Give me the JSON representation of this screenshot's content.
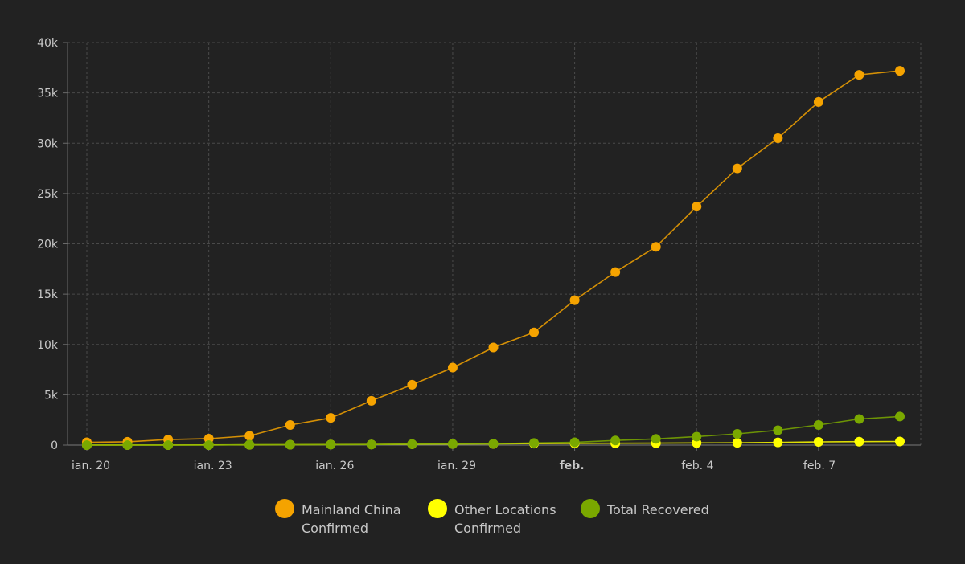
{
  "chart_data": {
    "type": "line",
    "x": [
      "ian. 20",
      "ian. 21",
      "ian. 22",
      "ian. 23",
      "ian. 24",
      "ian. 25",
      "ian. 26",
      "ian. 27",
      "ian. 28",
      "ian. 29",
      "ian. 30",
      "ian. 31",
      "feb. 1",
      "feb. 2",
      "feb. 3",
      "feb. 4",
      "feb. 5",
      "feb. 6",
      "feb. 7",
      "feb. 8",
      "feb. 9"
    ],
    "xticks": [
      {
        "index": 0,
        "label": "ian. 20",
        "bold": false
      },
      {
        "index": 3,
        "label": "ian. 23",
        "bold": false
      },
      {
        "index": 6,
        "label": "ian. 26",
        "bold": false
      },
      {
        "index": 9,
        "label": "ian. 29",
        "bold": false
      },
      {
        "index": 12,
        "label": "feb.",
        "bold": true
      },
      {
        "index": 15,
        "label": "feb. 4",
        "bold": false
      },
      {
        "index": 18,
        "label": "feb. 7",
        "bold": false
      }
    ],
    "yticks": [
      {
        "value": 0,
        "label": "0"
      },
      {
        "value": 5000,
        "label": "5k"
      },
      {
        "value": 10000,
        "label": "10k"
      },
      {
        "value": 15000,
        "label": "15k"
      },
      {
        "value": 20000,
        "label": "20k"
      },
      {
        "value": 25000,
        "label": "25k"
      },
      {
        "value": 30000,
        "label": "30k"
      },
      {
        "value": 35000,
        "label": "35k"
      },
      {
        "value": 40000,
        "label": "40k"
      }
    ],
    "ylim": [
      0,
      40000
    ],
    "grid": true,
    "legend_position": "bottom",
    "series": [
      {
        "name_lines": [
          "Mainland China",
          "Confirmed"
        ],
        "color": "#f5a300",
        "values": [
          278,
          326,
          547,
          639,
          916,
          2000,
          2700,
          4400,
          6000,
          7700,
          9700,
          11200,
          14400,
          17200,
          19700,
          23700,
          27500,
          30500,
          34100,
          36800,
          37200
        ]
      },
      {
        "name_lines": [
          "Other Locations",
          "Confirmed"
        ],
        "color": "#ffff00",
        "values": [
          4,
          6,
          8,
          14,
          25,
          40,
          57,
          64,
          87,
          105,
          118,
          153,
          173,
          183,
          188,
          212,
          227,
          265,
          317,
          343,
          361
        ]
      },
      {
        "name_lines": [
          "Total Recovered"
        ],
        "color": "#7aa800",
        "values": [
          0,
          0,
          0,
          0,
          36,
          39,
          49,
          58,
          101,
          120,
          135,
          214,
          275,
          463,
          614,
          843,
          1115,
          1476,
          1999,
          2596,
          2842
        ]
      }
    ]
  }
}
